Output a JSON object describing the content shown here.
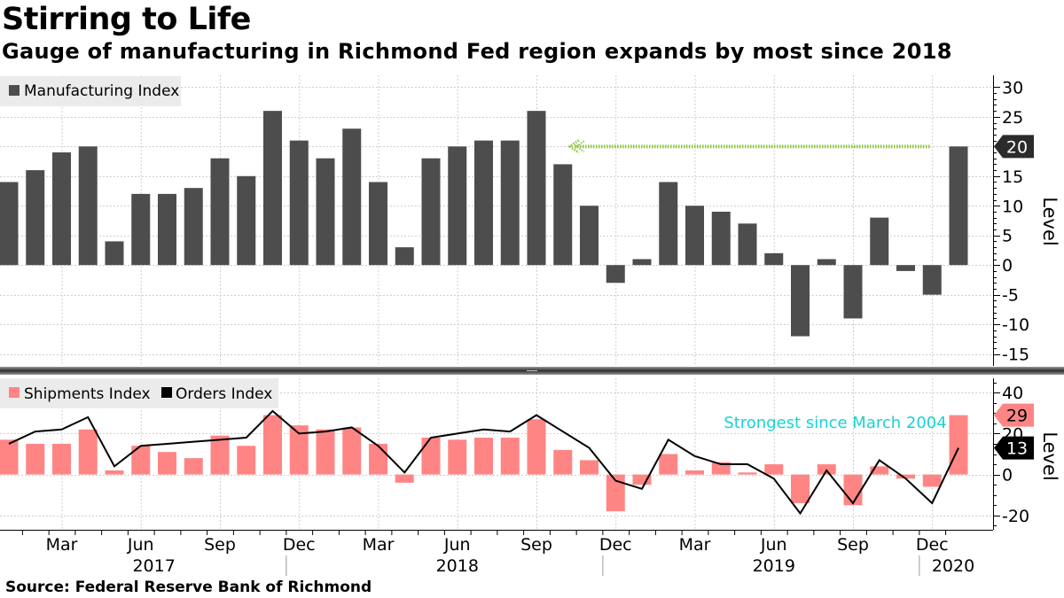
{
  "title": "Stirring to Life",
  "subtitle": "Gauge of manufacturing in Richmond Fed region expands by most since 2018",
  "source": "Source:  Federal Reserve Bank of Richmond",
  "colors": {
    "manufacturing": "#4d4d4d",
    "shipments": "#ff8585",
    "orders": "#000000",
    "arrow": "#8dc63f",
    "annotation": "#19d3d3",
    "grid": "#cfcfcf"
  },
  "chart_data": [
    {
      "type": "bar",
      "panel": "top",
      "ylabel": "Level",
      "ylim": [
        -17,
        32
      ],
      "yticks": [
        30,
        25,
        20,
        15,
        10,
        5,
        0,
        -5,
        -10,
        -15
      ],
      "grid": true,
      "legend_position": "top-left",
      "series": [
        {
          "name": "Manufacturing Index",
          "values": [
            14,
            16,
            19,
            20,
            4,
            12,
            12,
            13,
            18,
            15,
            26,
            21,
            18,
            23,
            14,
            3,
            18,
            20,
            21,
            21,
            26,
            17,
            10,
            -3,
            1,
            14,
            10,
            9,
            7,
            2,
            -12,
            1,
            -9,
            8,
            -1,
            -5,
            20
          ]
        }
      ],
      "last_value_label": "20",
      "annotation": {
        "type": "dotted-arrow",
        "level": 20,
        "from_index": 36,
        "to_index": 21
      }
    },
    {
      "type": "bar+line",
      "panel": "bottom",
      "ylabel": "Level",
      "ylim": [
        -27,
        47
      ],
      "yticks": [
        40,
        20,
        0,
        -20
      ],
      "grid": true,
      "legend_position": "top-left",
      "series": [
        {
          "name": "Shipments Index",
          "type": "bar",
          "values": [
            17,
            15,
            15,
            22,
            2,
            14,
            11,
            8,
            19,
            14,
            29,
            24,
            22,
            23,
            15,
            -4,
            18,
            17,
            18,
            18,
            27,
            12,
            7,
            -18,
            -5,
            10,
            2,
            6,
            1,
            5,
            -14,
            5,
            -15,
            4,
            -2,
            -6,
            29
          ]
        },
        {
          "name": "Orders Index",
          "type": "line",
          "values": [
            15,
            21,
            22,
            28,
            4,
            14,
            15,
            16,
            17,
            18,
            31,
            20,
            21,
            23,
            14,
            1,
            18,
            20,
            22,
            21,
            29,
            21,
            13,
            -3,
            -7,
            17,
            9,
            5,
            5,
            -2,
            -19,
            2,
            -14,
            7,
            -2,
            -14,
            13
          ]
        }
      ],
      "last_value_labels": {
        "shipments": "29",
        "orders": "13"
      },
      "annotation_text": "Strongest since March 2004"
    }
  ],
  "x_axis": {
    "months": [
      "Mar",
      "Jun",
      "Sep",
      "Dec",
      "Mar",
      "Jun",
      "Sep",
      "Dec",
      "Mar",
      "Jun",
      "Sep",
      "Dec"
    ],
    "years": [
      "2017",
      "2018",
      "2019",
      "2020"
    ]
  }
}
